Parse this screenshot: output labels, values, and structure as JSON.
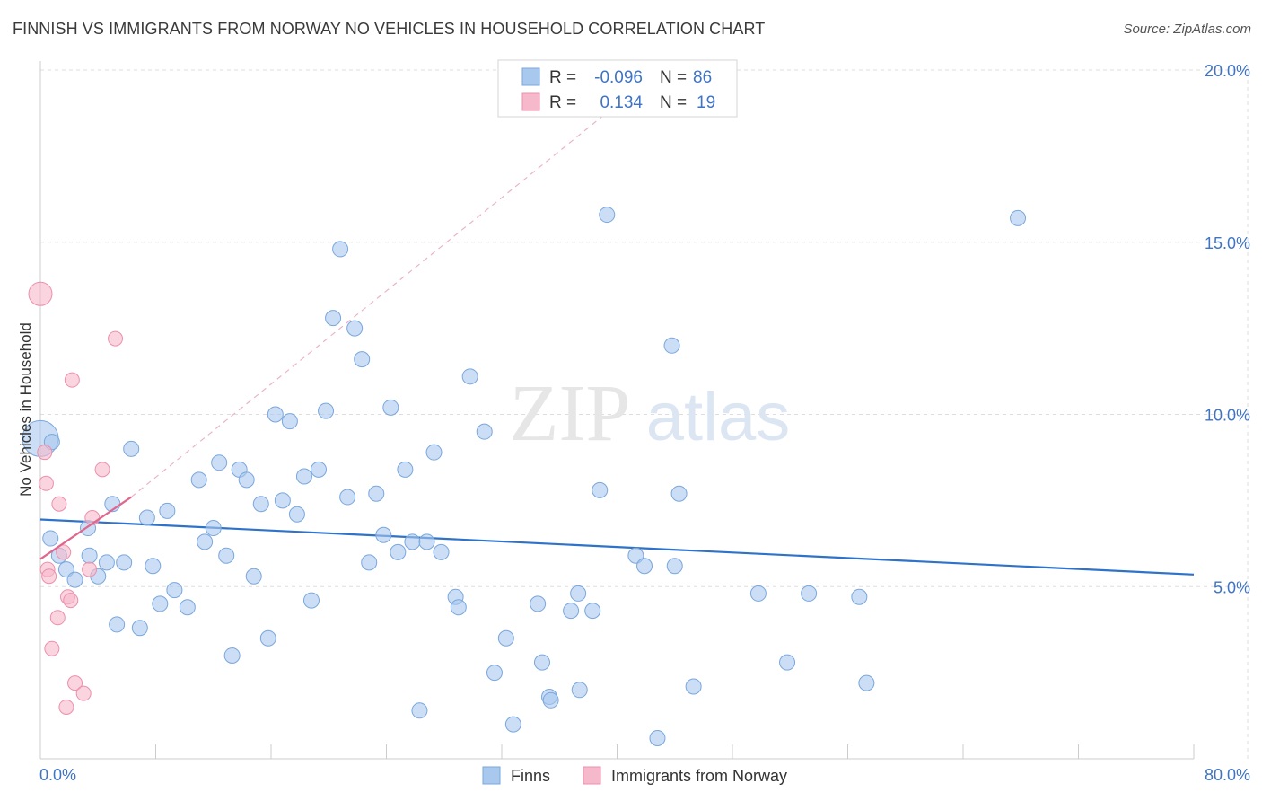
{
  "header": {
    "title": "FINNISH VS IMMIGRANTS FROM NORWAY NO VEHICLES IN HOUSEHOLD CORRELATION CHART",
    "source": "Source: ZipAtlas.com"
  },
  "watermark": {
    "zip": "ZIP",
    "atlas": "atlas"
  },
  "legend_box": {
    "rows": [
      {
        "r_label": "R =",
        "r_value": "-0.096",
        "n_label": "N =",
        "n_value": "86"
      },
      {
        "r_label": "R =",
        "r_value": "0.134",
        "n_label": "N =",
        "n_value": "19"
      }
    ]
  },
  "colors": {
    "blue_fill": "#a9c8ee",
    "blue_stroke": "#7aa7dc",
    "blue_line": "#2e72c9",
    "pink_fill": "#f6b9cb",
    "pink_stroke": "#ec8fab",
    "pink_line": "#e0668d",
    "axis_text": "#3f74c4",
    "grid": "#dddddd"
  },
  "chart_data": {
    "type": "scatter",
    "title": "FINNISH VS IMMIGRANTS FROM NORWAY NO VEHICLES IN HOUSEHOLD CORRELATION CHART",
    "xlabel": "",
    "ylabel": "No Vehicles in Household",
    "xlim": [
      0,
      80
    ],
    "ylim": [
      0,
      20
    ],
    "x_tick_labels": [
      "0.0%",
      "80.0%"
    ],
    "y_ticks": [
      5,
      10,
      15,
      20
    ],
    "y_tick_labels": [
      "5.0%",
      "10.0%",
      "15.0%",
      "20.0%"
    ],
    "grid": true,
    "legend_position": "bottom",
    "series": [
      {
        "name": "Finns",
        "r": -0.096,
        "n": 86,
        "trend": {
          "x0": 0,
          "y0": 6.95,
          "x1": 80,
          "y1": 5.35
        },
        "points": [
          [
            0.0,
            9.3
          ],
          [
            0.7,
            6.4
          ],
          [
            1.3,
            5.9
          ],
          [
            1.8,
            5.5
          ],
          [
            2.4,
            5.2
          ],
          [
            3.3,
            6.7
          ],
          [
            3.4,
            5.9
          ],
          [
            4.0,
            5.3
          ],
          [
            4.6,
            5.7
          ],
          [
            5.0,
            7.4
          ],
          [
            5.3,
            3.9
          ],
          [
            5.8,
            5.7
          ],
          [
            6.3,
            9.0
          ],
          [
            6.9,
            3.8
          ],
          [
            7.4,
            7.0
          ],
          [
            7.8,
            5.6
          ],
          [
            8.3,
            4.5
          ],
          [
            8.8,
            7.2
          ],
          [
            9.3,
            4.9
          ],
          [
            10.2,
            4.4
          ],
          [
            11.0,
            8.1
          ],
          [
            11.4,
            6.3
          ],
          [
            12.0,
            6.7
          ],
          [
            12.4,
            8.6
          ],
          [
            12.9,
            5.9
          ],
          [
            13.3,
            3.0
          ],
          [
            13.8,
            8.4
          ],
          [
            14.3,
            8.1
          ],
          [
            14.8,
            5.3
          ],
          [
            15.3,
            7.4
          ],
          [
            15.8,
            3.5
          ],
          [
            16.3,
            10.0
          ],
          [
            16.8,
            7.5
          ],
          [
            17.3,
            9.8
          ],
          [
            17.8,
            7.1
          ],
          [
            18.3,
            8.2
          ],
          [
            18.8,
            4.6
          ],
          [
            19.3,
            8.4
          ],
          [
            19.8,
            10.1
          ],
          [
            20.3,
            12.8
          ],
          [
            20.8,
            14.8
          ],
          [
            21.3,
            7.6
          ],
          [
            21.8,
            12.5
          ],
          [
            22.3,
            11.6
          ],
          [
            22.8,
            5.7
          ],
          [
            23.3,
            7.7
          ],
          [
            23.8,
            6.5
          ],
          [
            24.3,
            10.2
          ],
          [
            24.8,
            6.0
          ],
          [
            25.3,
            8.4
          ],
          [
            25.8,
            6.3
          ],
          [
            26.3,
            1.4
          ],
          [
            26.8,
            6.3
          ],
          [
            27.3,
            8.9
          ],
          [
            27.8,
            6.0
          ],
          [
            28.8,
            4.7
          ],
          [
            29.0,
            4.4
          ],
          [
            29.8,
            11.1
          ],
          [
            30.8,
            9.5
          ],
          [
            31.5,
            2.5
          ],
          [
            32.3,
            3.5
          ],
          [
            32.8,
            1.0
          ],
          [
            34.8,
            2.8
          ],
          [
            34.5,
            4.5
          ],
          [
            35.3,
            1.8
          ],
          [
            35.4,
            1.7
          ],
          [
            36.8,
            4.3
          ],
          [
            37.3,
            4.8
          ],
          [
            37.4,
            2.0
          ],
          [
            38.3,
            4.3
          ],
          [
            38.8,
            7.8
          ],
          [
            39.3,
            15.8
          ],
          [
            41.3,
            5.9
          ],
          [
            41.9,
            5.6
          ],
          [
            42.8,
            0.6
          ],
          [
            43.8,
            12.0
          ],
          [
            44.0,
            5.6
          ],
          [
            44.3,
            7.7
          ],
          [
            45.3,
            2.1
          ],
          [
            49.8,
            4.8
          ],
          [
            51.8,
            2.8
          ],
          [
            53.3,
            4.8
          ],
          [
            56.8,
            4.7
          ],
          [
            57.3,
            2.2
          ],
          [
            67.8,
            15.7
          ],
          [
            0.8,
            9.2
          ]
        ]
      },
      {
        "name": "Immigrants from Norway",
        "r": 0.134,
        "n": 19,
        "trend_solid": {
          "x0": 0,
          "y0": 5.8,
          "x1": 6.3,
          "y1": 7.6
        },
        "trend_dashed": {
          "x0": 6.3,
          "y0": 7.6,
          "x1": 40,
          "y1": 19.0
        },
        "points": [
          [
            0.0,
            13.5
          ],
          [
            0.3,
            8.9
          ],
          [
            0.5,
            5.5
          ],
          [
            0.4,
            8.0
          ],
          [
            0.6,
            5.3
          ],
          [
            0.8,
            3.2
          ],
          [
            1.2,
            4.1
          ],
          [
            1.3,
            7.4
          ],
          [
            1.6,
            6.0
          ],
          [
            1.9,
            4.7
          ],
          [
            2.1,
            4.6
          ],
          [
            2.2,
            11.0
          ],
          [
            2.4,
            2.2
          ],
          [
            3.0,
            1.9
          ],
          [
            3.4,
            5.5
          ],
          [
            3.6,
            7.0
          ],
          [
            4.3,
            8.4
          ],
          [
            5.2,
            12.2
          ],
          [
            1.8,
            1.5
          ]
        ]
      }
    ]
  }
}
